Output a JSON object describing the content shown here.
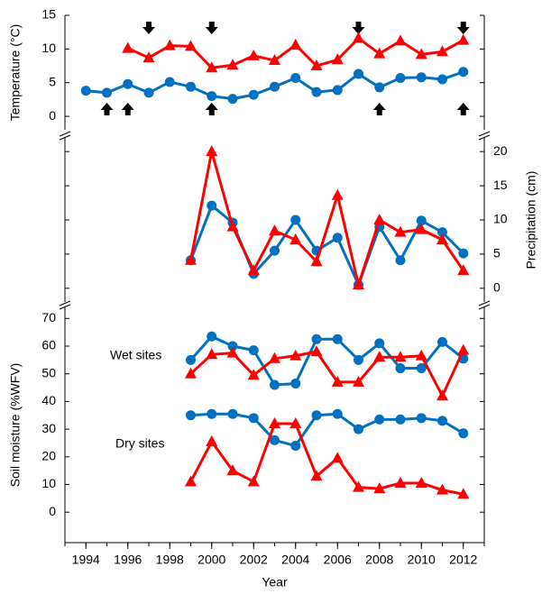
{
  "chart_data": [
    {
      "type": "line",
      "ylabel": "Temperature (°C)",
      "x": [
        1994,
        1995,
        1996,
        1997,
        1998,
        1999,
        2000,
        2001,
        2002,
        2003,
        2004,
        2005,
        2006,
        2007,
        2008,
        2009,
        2010,
        2011,
        2012
      ],
      "xlim": [
        1993,
        2013
      ],
      "ylim": [
        -2,
        15
      ],
      "yticks": [
        0,
        5,
        10,
        15
      ],
      "yaxis_side": "left",
      "series": [
        {
          "color": "#0070c0",
          "marker": "circle",
          "values": [
            3.8,
            3.5,
            4.8,
            3.5,
            5.1,
            4.4,
            3.0,
            2.6,
            3.2,
            4.4,
            5.7,
            3.6,
            3.9,
            6.3,
            4.3,
            5.7,
            5.8,
            5.5,
            6.6
          ]
        },
        {
          "color": "#ff0000",
          "marker": "triangle",
          "values": [
            null,
            null,
            10.1,
            8.7,
            10.5,
            10.4,
            7.2,
            7.6,
            9.0,
            8.3,
            10.6,
            7.5,
            8.4,
            11.6,
            9.3,
            11.2,
            9.2,
            9.6,
            11.3
          ]
        }
      ],
      "down_arrows": [
        1997,
        2000,
        2007,
        2012
      ],
      "up_arrows": [
        1995,
        1996,
        2000,
        2008,
        2012
      ]
    },
    {
      "type": "line",
      "ylabel": "Precipitation (cm)",
      "x": [
        1999,
        2000,
        2001,
        2002,
        2003,
        2004,
        2005,
        2006,
        2007,
        2008,
        2009,
        2010,
        2011,
        2012
      ],
      "xlim": [
        1993,
        2013
      ],
      "ylim": [
        -2,
        22
      ],
      "yticks": [
        0,
        5,
        10,
        15,
        20
      ],
      "yaxis_side": "right",
      "series": [
        {
          "color": "#0070c0",
          "marker": "circle",
          "values": [
            4.1,
            12.1,
            9.6,
            2.1,
            5.5,
            10.0,
            5.5,
            7.4,
            0.5,
            9.0,
            4.1,
            9.9,
            8.2,
            5.1
          ]
        },
        {
          "color": "#ff0000",
          "marker": "triangle",
          "values": [
            4.1,
            20.0,
            9.0,
            2.6,
            8.4,
            7.1,
            3.9,
            13.6,
            0.5,
            10.0,
            8.2,
            8.6,
            7.1,
            2.6
          ]
        }
      ]
    },
    {
      "type": "line",
      "ylabel": "Soil moisture (%WFV)",
      "xlabel": "Year",
      "x": [
        1999,
        2000,
        2001,
        2002,
        2003,
        2004,
        2005,
        2006,
        2007,
        2008,
        2009,
        2010,
        2011,
        2012
      ],
      "xlim": [
        1993,
        2013
      ],
      "ylim": [
        -11,
        74
      ],
      "yticks": [
        0,
        10,
        20,
        30,
        40,
        50,
        60,
        70
      ],
      "yaxis_side": "left",
      "xticks": [
        1994,
        1996,
        1998,
        2000,
        2002,
        2004,
        2006,
        2008,
        2010,
        2012
      ],
      "xminorticks": [
        1993,
        1994,
        1995,
        1996,
        1997,
        1998,
        1999,
        2000,
        2001,
        2002,
        2003,
        2004,
        2005,
        2006,
        2007,
        2008,
        2009,
        2010,
        2011,
        2012,
        2013
      ],
      "annotations": [
        "Wet sites",
        "Dry sites"
      ],
      "series": [
        {
          "color": "#0070c0",
          "marker": "circle",
          "values": [
            55,
            63.5,
            60,
            58.5,
            46,
            46.5,
            62.5,
            62.5,
            55,
            61,
            52,
            52,
            61.5,
            55.5
          ]
        },
        {
          "color": "#ff0000",
          "marker": "triangle",
          "values": [
            50,
            57,
            57.5,
            49.5,
            55.5,
            56.5,
            58,
            47,
            47,
            56,
            56,
            56.5,
            42,
            58.5
          ]
        },
        {
          "color": "#0070c0",
          "marker": "circle",
          "values": [
            35,
            35.5,
            35.5,
            34,
            26,
            24,
            35,
            35.5,
            30,
            33.5,
            33.5,
            34,
            33,
            28.5
          ]
        },
        {
          "color": "#ff0000",
          "marker": "triangle",
          "values": [
            11,
            25.5,
            15,
            11,
            32,
            32,
            13,
            19.5,
            9,
            8.5,
            10.5,
            10.5,
            8,
            6.5
          ]
        }
      ]
    }
  ]
}
